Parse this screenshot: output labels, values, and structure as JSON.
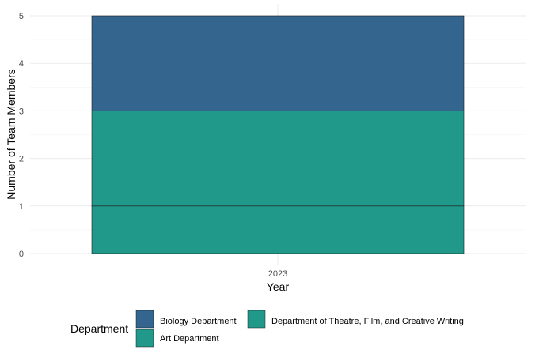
{
  "chart_data": {
    "type": "bar",
    "stacked": true,
    "categories": [
      "2023"
    ],
    "series": [
      {
        "name": "Art Department",
        "values": [
          1
        ],
        "color": "#21998a"
      },
      {
        "name": "Department of Theatre, Film, and Creative Writing",
        "values": [
          2
        ],
        "color": "#21998a"
      },
      {
        "name": "Biology Department",
        "values": [
          2
        ],
        "color": "#33658f"
      }
    ],
    "xlabel": "Year",
    "ylabel": "Number of Team Members",
    "ylim": [
      0,
      5
    ],
    "yticks": [
      "0",
      "1",
      "2",
      "3",
      "4",
      "5"
    ],
    "grid": true,
    "legend": {
      "title": "Department",
      "position": "bottom",
      "entries": [
        {
          "label": "Biology Department",
          "color": "#33658f"
        },
        {
          "label": "Art Department",
          "color": "#21998a"
        },
        {
          "label": "Department of Theatre, Film, and Creative Writing",
          "color": "#21998a"
        }
      ]
    }
  }
}
